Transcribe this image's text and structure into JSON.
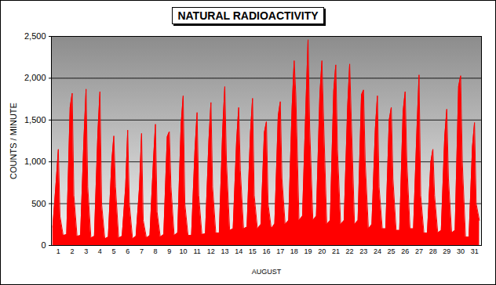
{
  "chart_data": {
    "type": "area",
    "title": "NATURAL RADIOACTIVITY",
    "x_label": "AUGUST",
    "y_label": "COUNTS / MINUTE",
    "x": [
      0.6,
      0.85,
      1,
      1.12,
      1.35,
      1.6,
      1.85,
      2,
      2.12,
      2.35,
      2.6,
      2.85,
      3,
      3.12,
      3.35,
      3.6,
      3.85,
      4,
      4.12,
      4.35,
      4.6,
      4.85,
      5,
      5.12,
      5.35,
      5.6,
      5.85,
      6,
      6.12,
      6.35,
      6.6,
      6.85,
      7,
      7.12,
      7.35,
      7.6,
      7.85,
      8,
      8.12,
      8.35,
      8.6,
      8.85,
      9,
      9.12,
      9.35,
      9.6,
      9.85,
      10,
      10.12,
      10.35,
      10.6,
      10.85,
      11,
      11.12,
      11.35,
      11.6,
      11.85,
      12,
      12.12,
      12.35,
      12.6,
      12.85,
      13,
      13.12,
      13.35,
      13.6,
      13.85,
      14,
      14.12,
      14.35,
      14.6,
      14.85,
      15,
      15.12,
      15.35,
      15.6,
      15.85,
      16,
      16.12,
      16.35,
      16.6,
      16.85,
      17,
      17.12,
      17.35,
      17.6,
      17.85,
      18,
      18.12,
      18.35,
      18.6,
      18.85,
      19,
      19.12,
      19.35,
      19.6,
      19.85,
      20,
      20.12,
      20.35,
      20.6,
      20.85,
      21,
      21.12,
      21.35,
      21.6,
      21.85,
      22,
      22.12,
      22.35,
      22.6,
      22.85,
      23,
      23.12,
      23.35,
      23.6,
      23.85,
      24,
      24.12,
      24.35,
      24.6,
      24.85,
      25,
      25.12,
      25.35,
      25.6,
      25.85,
      26,
      26.12,
      26.35,
      26.6,
      26.85,
      27,
      27.12,
      27.35,
      27.6,
      27.85,
      28,
      28.12,
      28.35,
      28.6,
      28.85,
      29,
      29.12,
      29.35,
      29.6,
      29.85,
      30,
      30.12,
      30.35,
      30.6,
      30.85,
      31,
      31.12,
      31.35
    ],
    "values": [
      220,
      780,
      1150,
      350,
      120,
      130,
      1650,
      1820,
      600,
      110,
      120,
      1300,
      1870,
      700,
      90,
      110,
      1350,
      1840,
      500,
      80,
      100,
      1000,
      1310,
      700,
      90,
      110,
      700,
      1380,
      500,
      80,
      110,
      700,
      1340,
      300,
      90,
      120,
      1000,
      1450,
      400,
      100,
      130,
      1300,
      1360,
      700,
      120,
      150,
      1450,
      1790,
      500,
      120,
      120,
      1150,
      1590,
      600,
      130,
      140,
      1250,
      1710,
      700,
      150,
      150,
      1400,
      1900,
      1000,
      180,
      200,
      1250,
      1650,
      900,
      200,
      220,
      1350,
      1760,
      600,
      200,
      250,
      1350,
      1480,
      500,
      200,
      260,
      1550,
      1720,
      800,
      250,
      300,
      1650,
      2210,
      1800,
      300,
      350,
      1700,
      2460,
      1400,
      300,
      350,
      1800,
      2210,
      1500,
      250,
      300,
      1850,
      2160,
      1150,
      250,
      300,
      1650,
      2170,
      1500,
      250,
      300,
      1800,
      1860,
      1000,
      200,
      250,
      1400,
      1790,
      700,
      200,
      200,
      1500,
      1650,
      800,
      180,
      180,
      1600,
      1840,
      1000,
      200,
      200,
      1400,
      2040,
      600,
      150,
      150,
      1000,
      1150,
      600,
      150,
      180,
      1300,
      1630,
      800,
      150,
      180,
      1900,
      2030,
      1000,
      100,
      100,
      1180,
      1470,
      500,
      300
    ],
    "color": "#ff0000",
    "xlim": [
      0.5,
      31.5
    ],
    "xticks": [
      1,
      2,
      3,
      4,
      5,
      6,
      7,
      8,
      9,
      10,
      11,
      12,
      13,
      14,
      15,
      16,
      17,
      18,
      19,
      20,
      21,
      22,
      23,
      24,
      25,
      26,
      27,
      28,
      29,
      30,
      31
    ],
    "ylim": [
      0,
      2500
    ],
    "yticks": [
      0,
      500,
      1000,
      1500,
      2000,
      2500
    ],
    "grid": true
  }
}
